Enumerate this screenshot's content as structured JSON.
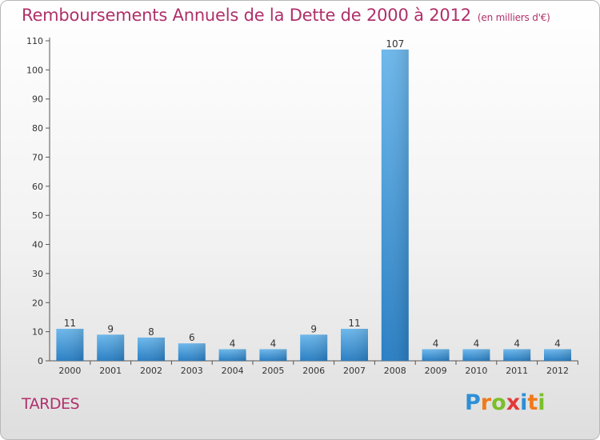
{
  "title": "Remboursements Annuels de la Dette de 2000 à 2012",
  "units": "(en milliers d'€)",
  "commune": "TARDES",
  "logo": {
    "letters": [
      "P",
      "r",
      "o",
      "x",
      "i",
      "t",
      "i"
    ],
    "colors": [
      "#2e8fd6",
      "#f07a1a",
      "#7bbf2a",
      "#e23a3a",
      "#2e8fd6",
      "#f07a1a",
      "#7bbf2a"
    ]
  },
  "colors": {
    "accent": "#b0306a",
    "bar_light": "#6db8ec",
    "bar_dark": "#2a7fc4"
  },
  "chart_data": {
    "type": "bar",
    "title": "Remboursements Annuels de la Dette de 2000 à 2012",
    "xlabel": "",
    "ylabel": "",
    "categories": [
      "2000",
      "2001",
      "2002",
      "2003",
      "2004",
      "2005",
      "2006",
      "2007",
      "2008",
      "2009",
      "2010",
      "2011",
      "2012"
    ],
    "values": [
      11,
      9,
      8,
      6,
      4,
      4,
      9,
      11,
      107,
      4,
      4,
      4,
      4
    ],
    "ylim": [
      0,
      110
    ],
    "yticks": [
      0,
      10,
      20,
      30,
      40,
      50,
      60,
      70,
      80,
      90,
      100,
      110
    ],
    "grid": false
  }
}
